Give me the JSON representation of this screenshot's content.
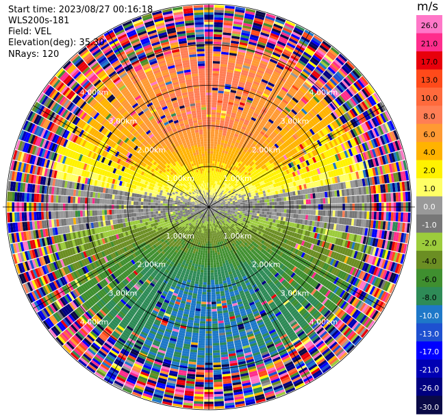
{
  "header": {
    "start_time": "Start time: 2023/08/27 00:16:18",
    "instrument": "WLS200s-181",
    "field": "Field: VEL",
    "elevation": "Elevation(deg): 35.30",
    "nrays": "NRays: 120"
  },
  "chart_data": {
    "type": "heatmap",
    "projection": "polar-ppi",
    "field": "VEL",
    "units": "m/s",
    "n_rays": 120,
    "range_rings_km": [
      1.0,
      2.0,
      3.0,
      4.0
    ],
    "ring_label_texts": [
      "1.00km",
      "2.00km",
      "3.00km",
      "4.00km"
    ],
    "max_range_km": 5.0,
    "grid": true,
    "colorbar": {
      "position": "right",
      "ticks": [
        "26.0",
        "21.0",
        "17.0",
        "13.0",
        "10.0",
        "8.0",
        "6.0",
        "4.0",
        "2.0",
        "1.0",
        "0.0",
        "-1.0",
        "-2.0",
        "-4.0",
        "-6.0",
        "-8.0",
        "-10.0",
        "-13.0",
        "-17.0",
        "-21.0",
        "-26.0",
        "-30.0"
      ],
      "bins": [
        {
          "from": 26,
          "to": 30,
          "color": "#ff77c8"
        },
        {
          "from": 21,
          "to": 26,
          "color": "#ff2d8c"
        },
        {
          "from": 17,
          "to": 21,
          "color": "#e8000b"
        },
        {
          "from": 13,
          "to": 17,
          "color": "#ff4a1a"
        },
        {
          "from": 10,
          "to": 13,
          "color": "#ff6a3c"
        },
        {
          "from": 8,
          "to": 10,
          "color": "#ff7e55"
        },
        {
          "from": 6,
          "to": 8,
          "color": "#ff9a33"
        },
        {
          "from": 4,
          "to": 6,
          "color": "#ffb300"
        },
        {
          "from": 2,
          "to": 4,
          "color": "#fff200"
        },
        {
          "from": 1,
          "to": 2,
          "color": "#ffff66"
        },
        {
          "from": 0,
          "to": 1,
          "color": "#999999"
        },
        {
          "from": -1,
          "to": 0,
          "color": "#777777"
        },
        {
          "from": -2,
          "to": -1,
          "color": "#9ccc3c"
        },
        {
          "from": -4,
          "to": -2,
          "color": "#6b8e23"
        },
        {
          "from": -6,
          "to": -4,
          "color": "#3f8f2f"
        },
        {
          "from": -8,
          "to": -6,
          "color": "#2e8b57"
        },
        {
          "from": -10,
          "to": -8,
          "color": "#1e78c8"
        },
        {
          "from": -13,
          "to": -10,
          "color": "#1e50d0"
        },
        {
          "from": -17,
          "to": -13,
          "color": "#0000ff"
        },
        {
          "from": -21,
          "to": -17,
          "color": "#0000b4"
        },
        {
          "from": -26,
          "to": -21,
          "color": "#000080"
        },
        {
          "from": -30,
          "to": -26,
          "color": "#0a0a46"
        }
      ]
    }
  }
}
